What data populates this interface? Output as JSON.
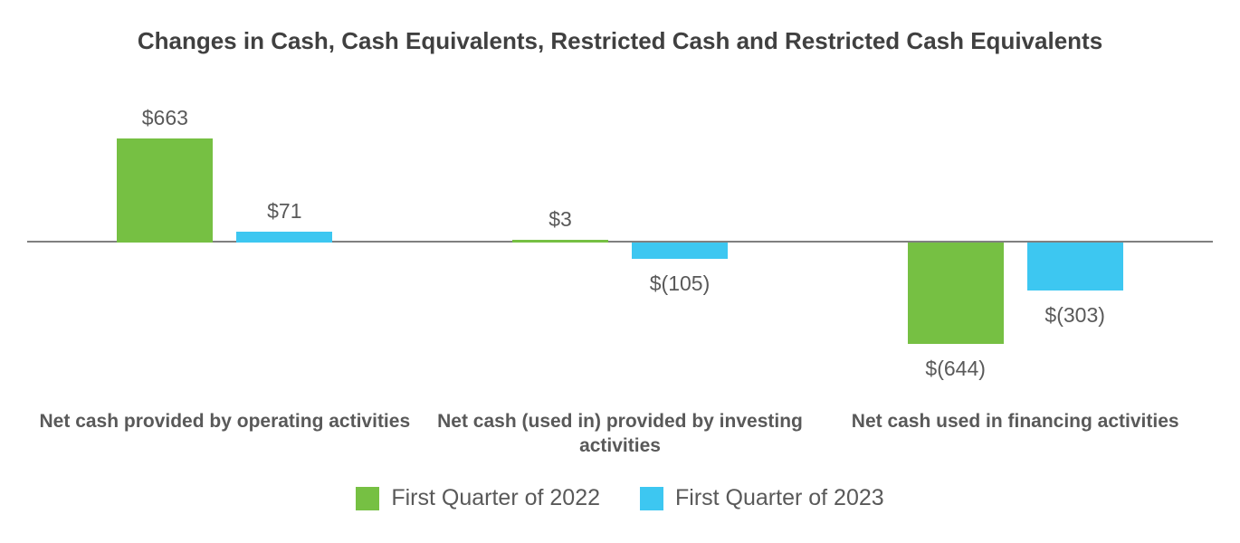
{
  "chart_data": {
    "type": "bar",
    "title": "Changes in Cash, Cash Equivalents, Restricted Cash and Restricted Cash Equivalents",
    "categories": [
      "Net cash provided by operating activities",
      "Net cash (used in) provided by investing activities",
      "Net cash used in financing activities"
    ],
    "series": [
      {
        "name": "First Quarter of 2022",
        "color": "#76C043",
        "values": [
          663,
          3,
          -644
        ],
        "value_labels": [
          "$663",
          "$3",
          "$(644)"
        ]
      },
      {
        "name": "First Quarter of 2023",
        "color": "#3DC7F1",
        "values": [
          71,
          -105,
          -303
        ],
        "value_labels": [
          "$71",
          "$(105)",
          "$(303)"
        ]
      }
    ],
    "xlabel": "",
    "ylabel": "",
    "grid": false,
    "y_axis_ticks_visible": false,
    "legend_position": "bottom",
    "baseline_color": "#808080",
    "title_color": "#404040",
    "text_color": "#595959"
  }
}
